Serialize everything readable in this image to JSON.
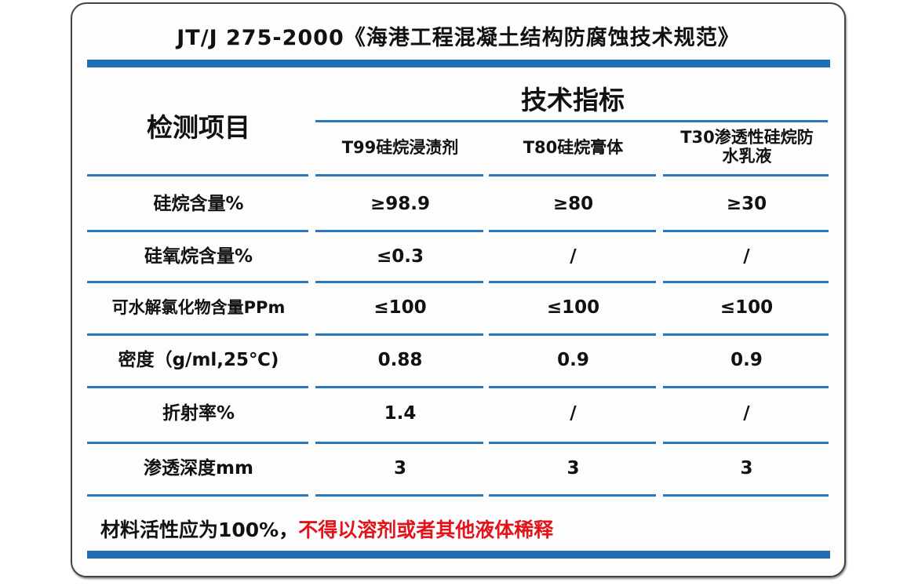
{
  "title": "JT/J 275-2000《海港工程混凝土结构防腐蚀技术规范》",
  "header": {
    "item_label": "检测项目",
    "group_label": "技术指标",
    "columns": [
      "T99硅烷浸渍剂",
      "T80硅烷膏体",
      "T30渗透性硅烷防水乳液"
    ]
  },
  "rows": [
    {
      "item": "硅烷含量%",
      "values": [
        "≥98.9",
        "≥80",
        "≥30"
      ]
    },
    {
      "item": "硅氧烷含量%",
      "values": [
        "≤0.3",
        "/",
        "/"
      ]
    },
    {
      "item": "可水解氯化物含量PPm",
      "values": [
        "≤100",
        "≤100",
        "≤100"
      ]
    },
    {
      "item": "密度（g/ml,25℃)",
      "values": [
        "0.88",
        "0.9",
        "0.9"
      ]
    },
    {
      "item": "折射率%",
      "values": [
        "1.4",
        "/",
        "/"
      ]
    },
    {
      "item": "渗透深度mm",
      "values": [
        "3",
        "3",
        "3"
      ]
    }
  ],
  "footnote": {
    "black": "材料活性应为100%，",
    "red": "不得以溶剂或者其他液体稀释"
  },
  "colors": {
    "accent": "#1f6db5",
    "warning": "#e3131b"
  }
}
